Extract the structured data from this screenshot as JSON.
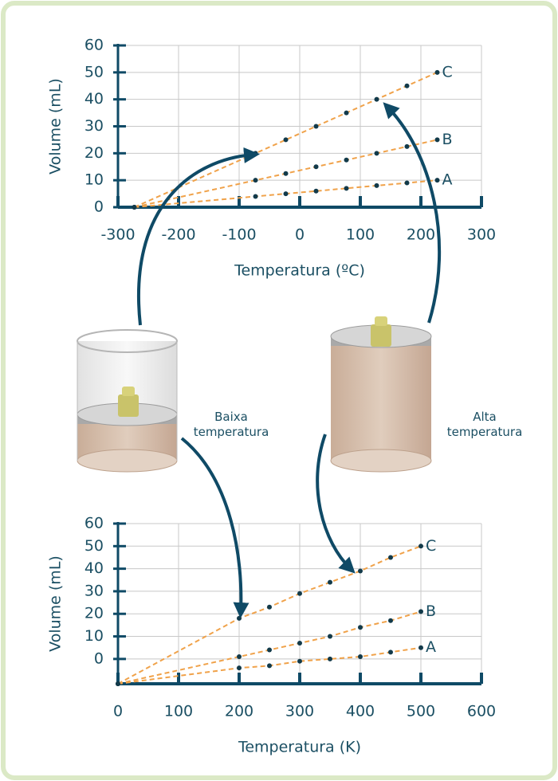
{
  "chart_data": [
    {
      "type": "line",
      "x_label": "Temperatura (ºC)",
      "y_label": "Volume (mL)",
      "x": [
        -273,
        -73,
        -23,
        27,
        77,
        127,
        177,
        227
      ],
      "series": [
        {
          "name": "A",
          "color": "#f0a24a",
          "values": [
            0,
            4,
            5,
            6,
            7,
            8,
            9,
            10
          ]
        },
        {
          "name": "B",
          "color": "#f0a24a",
          "values": [
            0,
            10,
            12.5,
            15,
            17.5,
            20,
            22.5,
            25
          ]
        },
        {
          "name": "C",
          "color": "#f0a24a",
          "values": [
            0,
            20,
            25,
            30,
            35,
            40,
            45,
            50
          ]
        }
      ],
      "xlim": [
        -300,
        300
      ],
      "ylim": [
        0,
        60
      ],
      "xticks": [
        -300,
        -200,
        -100,
        0,
        100,
        200,
        300
      ],
      "yticks": [
        0,
        10,
        20,
        30,
        40,
        50,
        60
      ],
      "grid": true,
      "line_style": "dashed",
      "marker_color": "#123a4a"
    },
    {
      "type": "line",
      "x_label": "Temperatura (K)",
      "y_label": "Volume (mL)",
      "x": [
        0,
        200,
        250,
        300,
        350,
        400,
        450,
        500
      ],
      "series": [
        {
          "name": "A",
          "color": "#f0a24a",
          "values": [
            -11,
            -4,
            -3,
            -1,
            0,
            1,
            3,
            5
          ]
        },
        {
          "name": "B",
          "color": "#f0a24a",
          "values": [
            -11,
            1,
            4,
            7,
            10,
            14,
            17,
            21
          ]
        },
        {
          "name": "C",
          "color": "#f0a24a",
          "values": [
            -11,
            18,
            23,
            29,
            34,
            39,
            45,
            50
          ]
        }
      ],
      "xlim": [
        0,
        600
      ],
      "ylim": [
        -11,
        60
      ],
      "xticks": [
        0,
        100,
        200,
        300,
        400,
        500,
        600
      ],
      "yticks": [
        0,
        10,
        20,
        30,
        40,
        50,
        60
      ],
      "grid": true,
      "line_style": "dashed",
      "marker_color": "#123a4a"
    }
  ],
  "captions": {
    "low": "Baixa temperatura",
    "high": "Alta temperatura"
  }
}
